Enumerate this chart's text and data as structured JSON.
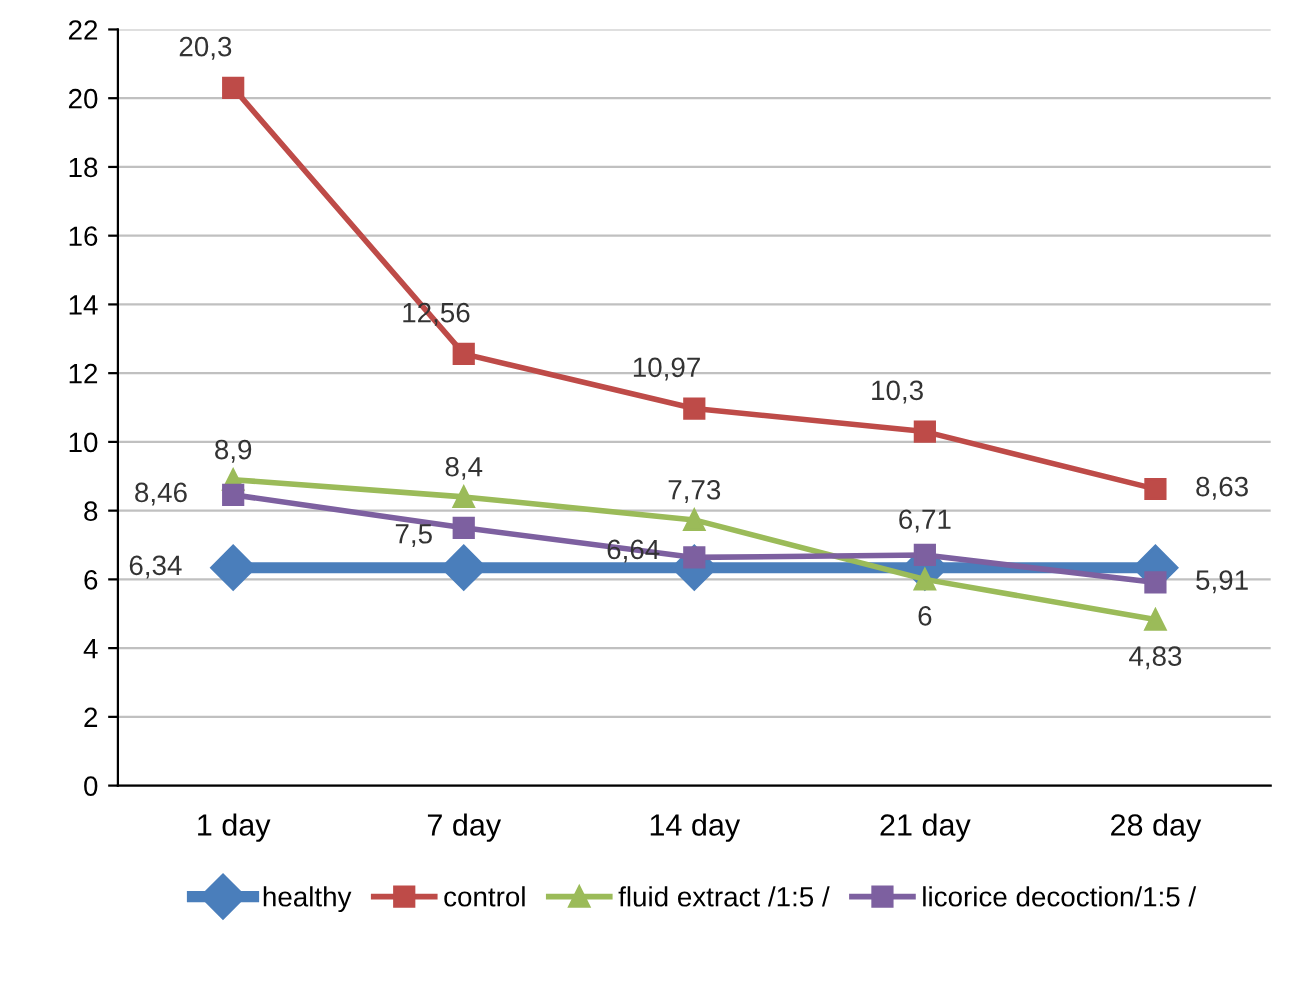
{
  "chart_data": {
    "type": "line",
    "categories": [
      "1 day",
      "7 day",
      "14 day",
      "21 day",
      "28 day"
    ],
    "series": [
      {
        "name": "healthy",
        "color": "#4a7ebb",
        "marker": "diamond",
        "values": [
          6.34,
          6.34,
          6.34,
          6.34,
          6.34
        ],
        "value_labels": [
          "6,34",
          null,
          null,
          null,
          null
        ]
      },
      {
        "name": "control",
        "color": "#be4b48",
        "marker": "square",
        "values": [
          20.3,
          12.56,
          10.97,
          10.3,
          8.63
        ],
        "value_labels": [
          "20,3",
          "12,56",
          "10,97",
          "10,3",
          "8,63"
        ]
      },
      {
        "name": "fluid extract /1:5 /",
        "color": "#9bbb59",
        "marker": "triangle",
        "values": [
          8.9,
          8.4,
          7.73,
          6,
          4.83
        ],
        "value_labels": [
          "8,9",
          "8,4",
          "7,73",
          "6",
          "4,83"
        ]
      },
      {
        "name": "licorice decoction/1:5 /",
        "color": "#7d60a0",
        "marker": "square",
        "values": [
          8.46,
          7.5,
          6.64,
          6.71,
          5.91
        ],
        "value_labels": [
          "8,46",
          "7,5",
          "6,64",
          "6,71",
          "5,91"
        ]
      }
    ],
    "ylim": [
      0,
      22
    ],
    "yticks": [
      0,
      2,
      4,
      6,
      8,
      10,
      12,
      14,
      16,
      18,
      20,
      22
    ],
    "grid": "y",
    "legend": "bottom",
    "line_style": "solid"
  }
}
